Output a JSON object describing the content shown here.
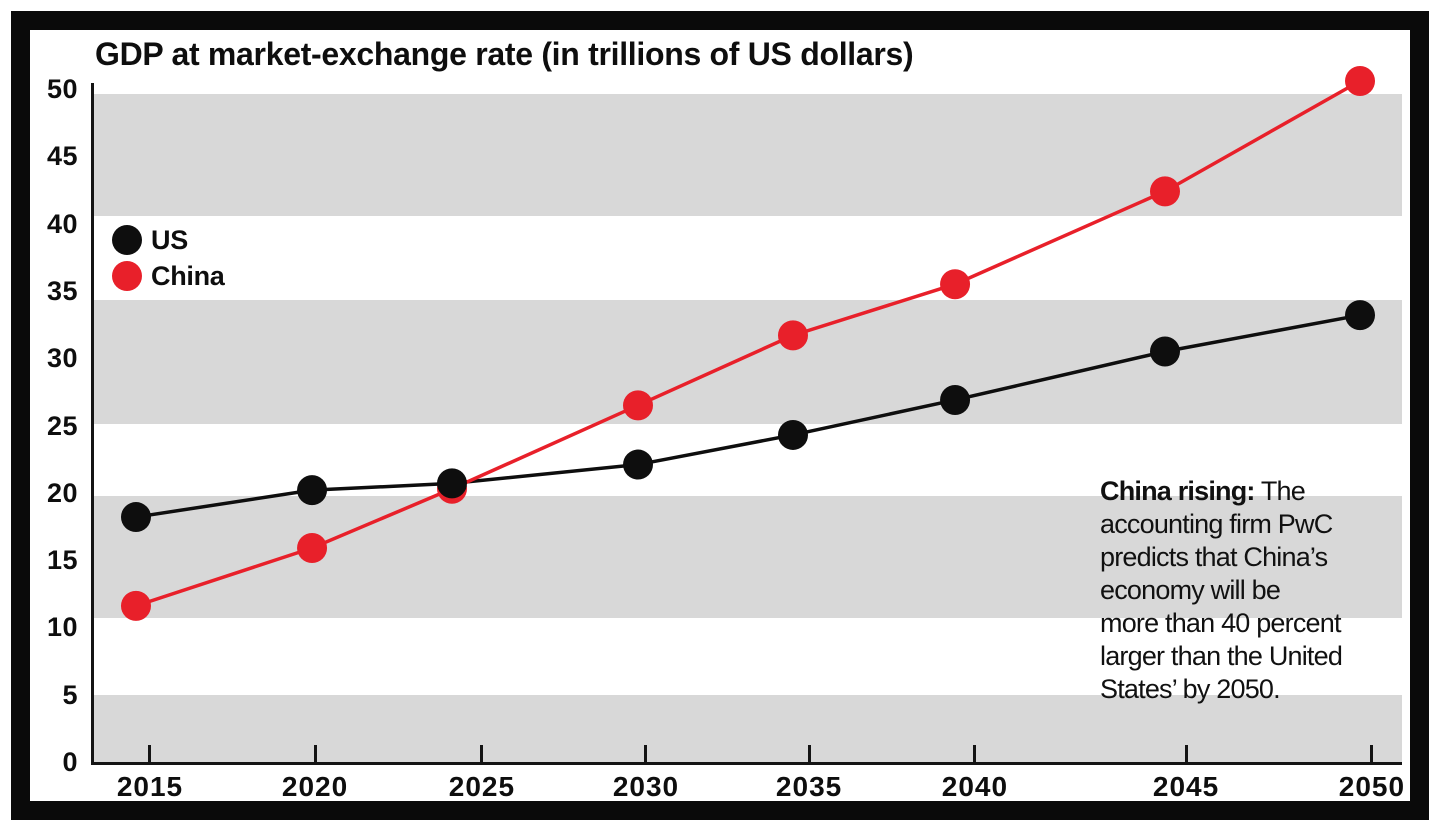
{
  "chart_data": {
    "type": "line",
    "title": "GDP at market-exchange rate (in trillions of US dollars)",
    "x": [
      2015,
      2020,
      2025,
      2030,
      2035,
      2040,
      2045,
      2050
    ],
    "xtick_labels": [
      "2015",
      "2020",
      "2025",
      "2030",
      "2035",
      "2040",
      "2045",
      "2050"
    ],
    "series": [
      {
        "name": "US",
        "color": "#0e0e0e",
        "values": [
          18.2,
          20.2,
          20.7,
          22.1,
          24.3,
          26.9,
          30.5,
          33.2
        ]
      },
      {
        "name": "China",
        "color": "#e8202a",
        "values": [
          11.6,
          15.9,
          20.3,
          26.5,
          31.7,
          35.5,
          42.4,
          50.6
        ]
      }
    ],
    "ylim": [
      0,
      50
    ],
    "yticks": [
      0,
      5,
      10,
      15,
      20,
      25,
      30,
      35,
      40,
      45,
      50
    ],
    "legend_position": "upper-left-inside",
    "grid": "striped-horizontal-bands",
    "stripe_band_color": "#d8d8d8",
    "stripe_bands": [
      [
        40.6,
        49.6
      ],
      [
        25.1,
        34.3
      ],
      [
        10.7,
        19.8
      ],
      [
        0,
        5.0
      ]
    ],
    "annotation": {
      "lead": "China rising:",
      "lines": [
        "The",
        "accounting firm PwC",
        "predicts that China’s",
        "economy will be",
        "more than 40 percent",
        "larger than the United",
        "States’ by 2050."
      ]
    },
    "layout": {
      "x_frac_points": [
        0.0321,
        0.1667,
        0.2737,
        0.4159,
        0.5344,
        0.6583,
        0.8188,
        0.9679
      ],
      "x_frac_ticks": [
        0.0428,
        0.169,
        0.2966,
        0.422,
        0.5467,
        0.6735,
        0.8349,
        0.977
      ],
      "value_at_plot_top": 50.45
    }
  }
}
